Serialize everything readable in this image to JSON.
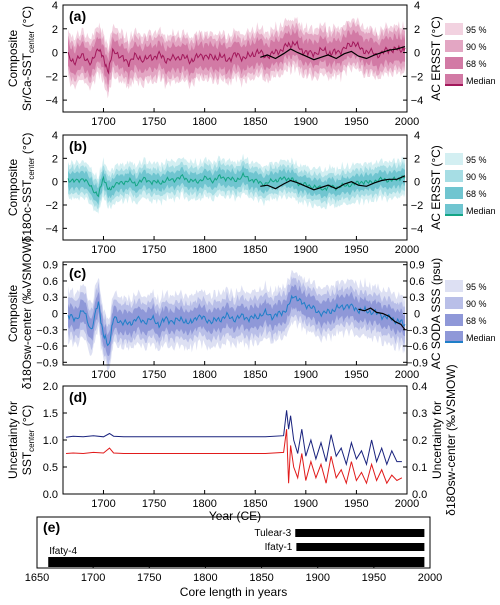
{
  "figure": {
    "x_axis_label": "Year (CE)",
    "core_axis_label": "Core length in years"
  },
  "chart_data": [
    {
      "panel": "(a)",
      "type": "area",
      "ylabel_left_1": "Composite",
      "ylabel_left_2": "Sr/Ca-SST",
      "ylabel_left_sub": "center",
      "ylabel_left_unit": " (°C)",
      "ylabel_right": "AC ERSST (°C)",
      "xlim": [
        1660,
        2000
      ],
      "ylim": [
        -5,
        4
      ],
      "yticks": [
        4,
        2,
        0,
        -2,
        -4
      ],
      "yticks_right": [
        4,
        2,
        0,
        -2,
        -4
      ],
      "xticks": [
        1700,
        1750,
        1800,
        1850,
        1900,
        1950,
        2000
      ],
      "colors": {
        "band95": "#f2d2e0",
        "band90": "#e3a6c3",
        "band68": "#d27aa5",
        "median": "#a2185b",
        "obs": "#000000"
      },
      "legend": [
        "95 %",
        "90 %",
        "68 %",
        "Median"
      ],
      "series": [
        {
          "label": "Median",
          "x": [
            1665,
            1672,
            1680,
            1688,
            1695,
            1700,
            1705,
            1710,
            1718,
            1725,
            1732,
            1740,
            1748,
            1755,
            1762,
            1770,
            1778,
            1785,
            1792,
            1800,
            1808,
            1815,
            1822,
            1830,
            1838,
            1845,
            1852,
            1860,
            1868,
            1875,
            1882,
            1888,
            1895,
            1902,
            1910,
            1918,
            1925,
            1932,
            1940,
            1948,
            1955,
            1962,
            1970,
            1978,
            1985,
            1992,
            1998
          ],
          "y": [
            -0.3,
            -0.8,
            -0.2,
            -1.0,
            0.5,
            -0.6,
            -1.5,
            0.3,
            -0.5,
            -0.8,
            -0.3,
            -0.6,
            -0.4,
            -0.2,
            -0.6,
            -0.5,
            -0.3,
            -0.7,
            -0.4,
            -0.2,
            -0.5,
            -0.3,
            -0.6,
            -0.2,
            -0.4,
            -0.3,
            0.1,
            -0.3,
            -0.1,
            0.2,
            0.6,
            0.8,
            0.3,
            -0.1,
            0.0,
            0.2,
            -0.1,
            0.1,
            0.4,
            0.9,
            0.2,
            0.1,
            -0.2,
            0.1,
            0.3,
            0.2,
            0.4
          ],
          "half_width": {
            "band68": 0.9,
            "band90": 1.4,
            "band95": 1.8
          }
        },
        {
          "label": "AC ERSST",
          "x": [
            1855,
            1862,
            1870,
            1878,
            1885,
            1892,
            1900,
            1908,
            1915,
            1922,
            1930,
            1938,
            1945,
            1952,
            1960,
            1968,
            1975,
            1982,
            1990,
            1998
          ],
          "y": [
            -0.4,
            -0.2,
            -0.5,
            -0.1,
            0.3,
            0.0,
            -0.3,
            -0.6,
            -0.4,
            -0.2,
            -0.5,
            -0.1,
            0.1,
            -0.3,
            -0.5,
            -0.2,
            0.0,
            0.2,
            0.3,
            0.5
          ]
        }
      ]
    },
    {
      "panel": "(b)",
      "type": "area",
      "ylabel_left_1": "Composite",
      "ylabel_left_2": "δ18Oc-SST",
      "ylabel_left_sub": "center",
      "ylabel_left_unit": " (°C)",
      "ylabel_right": "AC ERSST (°C)",
      "xlim": [
        1660,
        2000
      ],
      "ylim": [
        -5,
        4
      ],
      "yticks": [
        4,
        2,
        0,
        -2,
        -4
      ],
      "yticks_right": [
        4,
        2,
        0,
        -2,
        -4
      ],
      "xticks": [
        1700,
        1750,
        1800,
        1850,
        1900,
        1950,
        2000
      ],
      "colors": {
        "band95": "#d3eff2",
        "band90": "#a6dde4",
        "band68": "#70c5d0",
        "median": "#13a585",
        "obs": "#000000"
      },
      "legend": [
        "95 %",
        "90 %",
        "68 %",
        "Median"
      ],
      "series": [
        {
          "label": "Median",
          "x": [
            1665,
            1672,
            1680,
            1688,
            1695,
            1700,
            1705,
            1710,
            1718,
            1725,
            1732,
            1740,
            1748,
            1755,
            1762,
            1770,
            1778,
            1785,
            1792,
            1800,
            1808,
            1815,
            1822,
            1830,
            1838,
            1845,
            1852,
            1860,
            1868,
            1875,
            1882,
            1888,
            1895,
            1902,
            1910,
            1918,
            1925,
            1932,
            1940,
            1948,
            1955,
            1962,
            1970,
            1978,
            1985,
            1992,
            1998
          ],
          "y": [
            0.2,
            0.0,
            0.3,
            -0.5,
            -1.2,
            0.4,
            -0.8,
            -0.3,
            -0.1,
            0.1,
            -0.2,
            0.2,
            0.0,
            -0.1,
            0.1,
            0.2,
            0.4,
            0.1,
            0.0,
            0.3,
            0.1,
            0.4,
            0.3,
            0.1,
            0.5,
            0.2,
            0.0,
            -0.2,
            0.1,
            0.2,
            0.3,
            0.1,
            -0.2,
            -0.3,
            -0.5,
            -0.6,
            -0.4,
            -0.5,
            -0.3,
            -0.2,
            0.0,
            -0.1,
            0.1,
            0.2,
            0.1,
            0.3,
            0.4
          ],
          "half_width": {
            "band68": 0.6,
            "band90": 1.0,
            "band95": 1.4
          }
        },
        {
          "label": "AC ERSST",
          "x": [
            1855,
            1862,
            1870,
            1878,
            1885,
            1892,
            1900,
            1908,
            1915,
            1922,
            1930,
            1938,
            1945,
            1952,
            1960,
            1968,
            1975,
            1982,
            1990,
            1998
          ],
          "y": [
            -0.4,
            -0.3,
            -0.6,
            -0.2,
            0.1,
            -0.1,
            -0.4,
            -0.7,
            -0.5,
            -0.3,
            -0.6,
            -0.2,
            0.0,
            -0.3,
            -0.4,
            -0.1,
            0.1,
            0.2,
            0.2,
            0.5
          ]
        }
      ]
    },
    {
      "panel": "(c)",
      "type": "area",
      "ylabel_left_1": "Composite",
      "ylabel_left_2": "δ18Osw-center",
      "ylabel_left_sub": "",
      "ylabel_left_unit": " (‰VSMOW)",
      "ylabel_right": "AC SODA SSS (psu)",
      "xlim": [
        1660,
        2000
      ],
      "ylim": [
        -0.95,
        0.95
      ],
      "yticks": [
        0.9,
        0.6,
        0.3,
        0.0,
        -0.3,
        -0.6,
        -0.9
      ],
      "yticks_right": [
        0.9,
        0.6,
        0.3,
        0.0,
        -0.3,
        -0.6,
        -0.9
      ],
      "xticks": [
        1700,
        1750,
        1800,
        1850,
        1900,
        1950,
        2000
      ],
      "colors": {
        "band95": "#dde0f3",
        "band90": "#b9bfe8",
        "band68": "#8f98d8",
        "median": "#1f7fc8",
        "obs": "#000000"
      },
      "legend": [
        "95 %",
        "90 %",
        "68 %",
        "Median"
      ],
      "series": [
        {
          "label": "Median",
          "x": [
            1665,
            1672,
            1680,
            1688,
            1695,
            1700,
            1705,
            1710,
            1718,
            1725,
            1732,
            1740,
            1748,
            1755,
            1762,
            1770,
            1778,
            1785,
            1792,
            1800,
            1808,
            1815,
            1822,
            1830,
            1838,
            1845,
            1852,
            1860,
            1868,
            1875,
            1882,
            1888,
            1895,
            1902,
            1910,
            1918,
            1925,
            1932,
            1940,
            1948,
            1955,
            1962,
            1970,
            1978,
            1985,
            1992,
            1998
          ],
          "y": [
            -0.05,
            -0.1,
            0.05,
            -0.3,
            0.2,
            -0.4,
            -0.6,
            -0.1,
            -0.15,
            -0.2,
            -0.1,
            -0.15,
            -0.1,
            -0.2,
            -0.1,
            -0.15,
            -0.1,
            -0.2,
            -0.05,
            -0.1,
            -0.15,
            -0.1,
            -0.05,
            -0.1,
            -0.05,
            -0.1,
            -0.05,
            0.0,
            -0.05,
            0.0,
            0.1,
            0.35,
            0.2,
            0.15,
            0.05,
            0.0,
            0.05,
            0.1,
            0.15,
            0.1,
            0.05,
            0.05,
            0.0,
            -0.05,
            -0.1,
            -0.15,
            -0.2
          ],
          "half_width": {
            "band68": 0.18,
            "band90": 0.3,
            "band95": 0.42
          }
        },
        {
          "label": "AC SODA SSS",
          "x": [
            1952,
            1958,
            1964,
            1970,
            1976,
            1982,
            1988,
            1994,
            1998
          ],
          "y": [
            0.08,
            0.05,
            0.1,
            0.02,
            0.0,
            -0.05,
            -0.15,
            -0.2,
            -0.3
          ]
        }
      ]
    },
    {
      "panel": "(d)",
      "type": "line",
      "ylabel_left_1": "Uncertainty for",
      "ylabel_left_2": "SST",
      "ylabel_left_sub": "center",
      "ylabel_left_unit": " (°C)",
      "ylabel_right_1": "Uncertainty for",
      "ylabel_right_2": "δ18Osw-center (‰VSMOW)",
      "xlim": [
        1660,
        2000
      ],
      "ylim": [
        0,
        2.0
      ],
      "yticks": [
        0.0,
        0.5,
        1.0,
        1.5,
        2.0
      ],
      "yticks_right": [
        0.0,
        0.1,
        0.2,
        0.3,
        0.4
      ],
      "xticks": [
        1700,
        1750,
        1800,
        1850,
        1900,
        1950,
        2000
      ],
      "colors": {
        "sst": "#1a237e",
        "sw": "#e11b1b"
      },
      "series": [
        {
          "label": "SST",
          "x": [
            1663,
            1670,
            1680,
            1690,
            1700,
            1706,
            1710,
            1720,
            1740,
            1760,
            1780,
            1800,
            1820,
            1840,
            1860,
            1878,
            1881,
            1883,
            1885,
            1888,
            1892,
            1896,
            1900,
            1905,
            1910,
            1915,
            1920,
            1925,
            1930,
            1935,
            1940,
            1945,
            1950,
            1955,
            1960,
            1965,
            1970,
            1975,
            1980,
            1985,
            1990,
            1995
          ],
          "y": [
            1.05,
            1.07,
            1.06,
            1.08,
            1.06,
            1.12,
            1.07,
            1.06,
            1.06,
            1.06,
            1.06,
            1.06,
            1.06,
            1.06,
            1.06,
            1.08,
            1.55,
            1.2,
            1.45,
            1.0,
            0.75,
            1.2,
            0.7,
            1.0,
            0.65,
            0.95,
            0.6,
            1.1,
            0.7,
            0.85,
            0.55,
            0.95,
            0.65,
            0.8,
            0.55,
            1.0,
            0.6,
            0.85,
            0.55,
            0.8,
            0.6,
            0.6
          ]
        },
        {
          "label": "δ18Osw",
          "x": [
            1663,
            1670,
            1680,
            1690,
            1700,
            1706,
            1710,
            1720,
            1740,
            1760,
            1780,
            1800,
            1820,
            1840,
            1860,
            1878,
            1881,
            1883,
            1885,
            1888,
            1892,
            1896,
            1900,
            1905,
            1910,
            1915,
            1920,
            1925,
            1930,
            1935,
            1940,
            1945,
            1950,
            1955,
            1960,
            1965,
            1970,
            1975,
            1980,
            1985,
            1990,
            1995
          ],
          "y": [
            0.75,
            0.76,
            0.75,
            0.77,
            0.76,
            0.85,
            0.76,
            0.75,
            0.75,
            0.75,
            0.75,
            0.75,
            0.75,
            0.75,
            0.75,
            0.77,
            1.2,
            0.2,
            0.9,
            0.5,
            0.3,
            0.75,
            0.25,
            0.6,
            0.3,
            0.55,
            0.2,
            0.7,
            0.3,
            0.45,
            0.2,
            0.6,
            0.25,
            0.4,
            0.2,
            0.55,
            0.25,
            0.45,
            0.2,
            0.35,
            0.25,
            0.3
          ]
        }
      ]
    },
    {
      "panel": "(e)",
      "type": "bar",
      "xlabel": "Core length in years",
      "xlim": [
        1650,
        2000
      ],
      "xticks": [
        1650,
        1700,
        1750,
        1800,
        1850,
        1900,
        1950,
        2000
      ],
      "categories": [
        "Tulear-3",
        "Ifaty-1",
        "Ifaty-4"
      ],
      "series": [
        {
          "start": [
            1880,
            1881,
            1660
          ],
          "end": [
            1995,
            1995,
            1995
          ]
        }
      ]
    }
  ]
}
